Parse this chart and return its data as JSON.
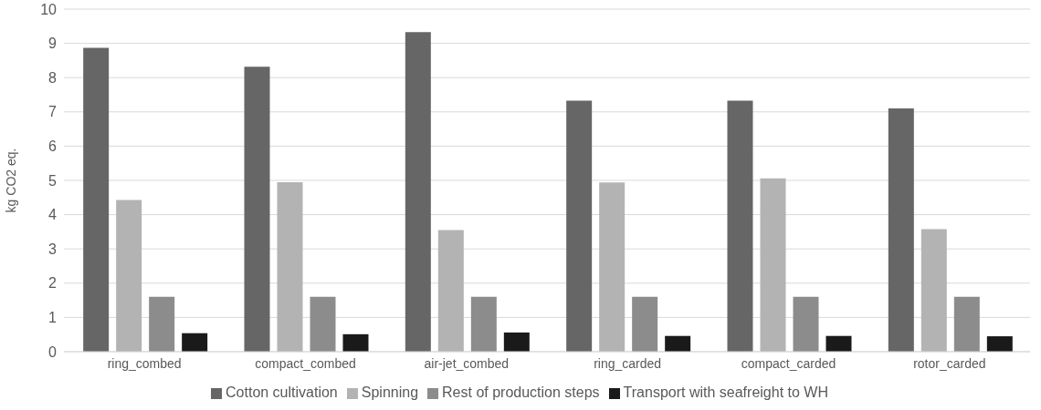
{
  "chart_data": {
    "type": "bar",
    "ylabel": "kg CO2 eq.",
    "categories": [
      "ring_combed",
      "compact_combed",
      "air-jet_combed",
      "ring_carded",
      "compact_carded",
      "rotor_carded"
    ],
    "series": [
      {
        "name": "Cotton cultivation",
        "color": "#666666",
        "values": [
          8.87,
          8.32,
          9.33,
          7.33,
          7.33,
          7.1
        ]
      },
      {
        "name": "Spinning",
        "color": "#b3b3b3",
        "values": [
          4.43,
          4.95,
          3.55,
          4.94,
          5.06,
          3.58
        ]
      },
      {
        "name": "Rest of production steps",
        "color": "#8c8c8c",
        "values": [
          1.6,
          1.6,
          1.6,
          1.6,
          1.6,
          1.6
        ]
      },
      {
        "name": "Transport with seafreight to WH",
        "color": "#1a1a1a",
        "values": [
          0.54,
          0.51,
          0.56,
          0.46,
          0.46,
          0.45
        ]
      }
    ],
    "ylim": [
      0,
      10
    ],
    "yticks": [
      0,
      1,
      2,
      3,
      4,
      5,
      6,
      7,
      8,
      9,
      10
    ],
    "grid": "y",
    "legend": "bottom"
  }
}
